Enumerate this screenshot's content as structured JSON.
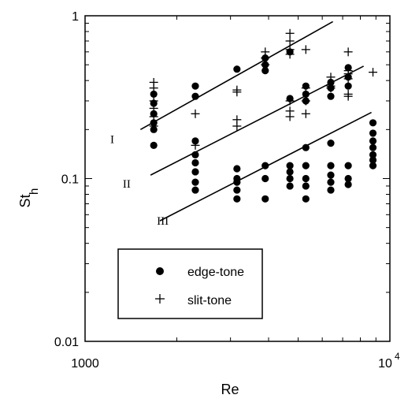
{
  "chart_data": {
    "type": "scatter",
    "xlabel": "Re",
    "ylabel": "St",
    "ylabel_subscript": "h",
    "xscale": "log",
    "yscale": "log",
    "xlim": [
      1000,
      10000
    ],
    "ylim": [
      0.01,
      1
    ],
    "x_tick_labels": [
      {
        "value": 1000,
        "label": "1000"
      },
      {
        "value": 10000,
        "label": "10",
        "exponent": "4"
      }
    ],
    "y_tick_labels": [
      {
        "value": 1,
        "label": "1"
      },
      {
        "value": 0.1,
        "label": "0.1"
      },
      {
        "value": 0.01,
        "label": "0.01"
      }
    ],
    "grid": false,
    "legend_position": "bottom-left",
    "series": [
      {
        "name": "edge-tone",
        "marker": "filled-circle",
        "points": [
          [
            1680,
            0.16
          ],
          [
            1680,
            0.2
          ],
          [
            1680,
            0.22
          ],
          [
            1680,
            0.25
          ],
          [
            1680,
            0.29
          ],
          [
            1680,
            0.33
          ],
          [
            2300,
            0.37
          ],
          [
            2300,
            0.32
          ],
          [
            2300,
            0.17
          ],
          [
            2300,
            0.14
          ],
          [
            2300,
            0.125
          ],
          [
            2300,
            0.11
          ],
          [
            2300,
            0.095
          ],
          [
            2300,
            0.085
          ],
          [
            3150,
            0.47
          ],
          [
            3150,
            0.115
          ],
          [
            3150,
            0.1
          ],
          [
            3150,
            0.095
          ],
          [
            3150,
            0.085
          ],
          [
            3150,
            0.075
          ],
          [
            3900,
            0.55
          ],
          [
            3900,
            0.5
          ],
          [
            3900,
            0.46
          ],
          [
            3900,
            0.12
          ],
          [
            3900,
            0.1
          ],
          [
            3900,
            0.075
          ],
          [
            4700,
            0.6
          ],
          [
            4700,
            0.31
          ],
          [
            4700,
            0.12
          ],
          [
            4700,
            0.11
          ],
          [
            4700,
            0.1
          ],
          [
            4700,
            0.09
          ],
          [
            5300,
            0.37
          ],
          [
            5300,
            0.33
          ],
          [
            5300,
            0.3
          ],
          [
            5300,
            0.155
          ],
          [
            5300,
            0.12
          ],
          [
            5300,
            0.1
          ],
          [
            5300,
            0.09
          ],
          [
            5300,
            0.075
          ],
          [
            6400,
            0.39
          ],
          [
            6400,
            0.36
          ],
          [
            6400,
            0.32
          ],
          [
            6400,
            0.165
          ],
          [
            6400,
            0.12
          ],
          [
            6400,
            0.105
          ],
          [
            6400,
            0.095
          ],
          [
            6400,
            0.085
          ],
          [
            7300,
            0.48
          ],
          [
            7300,
            0.42
          ],
          [
            7300,
            0.37
          ],
          [
            7300,
            0.12
          ],
          [
            7300,
            0.1
          ],
          [
            7300,
            0.092
          ],
          [
            8800,
            0.22
          ],
          [
            8800,
            0.19
          ],
          [
            8800,
            0.17
          ],
          [
            8800,
            0.155
          ],
          [
            8800,
            0.14
          ],
          [
            8800,
            0.13
          ],
          [
            8800,
            0.12
          ]
        ]
      },
      {
        "name": "slit-tone",
        "marker": "plus",
        "points": [
          [
            1680,
            0.39
          ],
          [
            1680,
            0.36
          ],
          [
            1680,
            0.3
          ],
          [
            1680,
            0.27
          ],
          [
            1680,
            0.24
          ],
          [
            1680,
            0.21
          ],
          [
            2300,
            0.25
          ],
          [
            2300,
            0.16
          ],
          [
            3150,
            0.35
          ],
          [
            3150,
            0.34
          ],
          [
            3150,
            0.23
          ],
          [
            3150,
            0.21
          ],
          [
            3900,
            0.6
          ],
          [
            3900,
            0.55
          ],
          [
            3900,
            0.5
          ],
          [
            4700,
            0.78
          ],
          [
            4700,
            0.7
          ],
          [
            4700,
            0.62
          ],
          [
            4700,
            0.58
          ],
          [
            4700,
            0.3
          ],
          [
            4700,
            0.26
          ],
          [
            4700,
            0.24
          ],
          [
            5300,
            0.62
          ],
          [
            5300,
            0.36
          ],
          [
            5300,
            0.3
          ],
          [
            5300,
            0.25
          ],
          [
            6400,
            0.42
          ],
          [
            6400,
            0.37
          ],
          [
            6400,
            0.36
          ],
          [
            7300,
            0.6
          ],
          [
            7300,
            0.46
          ],
          [
            7300,
            0.44
          ],
          [
            7300,
            0.41
          ],
          [
            7300,
            0.33
          ],
          [
            7300,
            0.32
          ],
          [
            8800,
            0.45
          ]
        ]
      }
    ],
    "fit_lines": [
      {
        "label": "I",
        "x": [
          1520,
          6500
        ],
        "y": [
          0.2,
          0.92
        ]
      },
      {
        "label": "II",
        "x": [
          1640,
          8200
        ],
        "y": [
          0.105,
          0.49
        ]
      },
      {
        "label": "III",
        "x": [
          1760,
          8700
        ],
        "y": [
          0.055,
          0.255
        ]
      }
    ],
    "region_labels": [
      {
        "label": "I",
        "x": 1210,
        "y": 0.175
      },
      {
        "label": "II",
        "x": 1330,
        "y": 0.093
      },
      {
        "label": "III",
        "x": 1720,
        "y": 0.055
      }
    ]
  }
}
